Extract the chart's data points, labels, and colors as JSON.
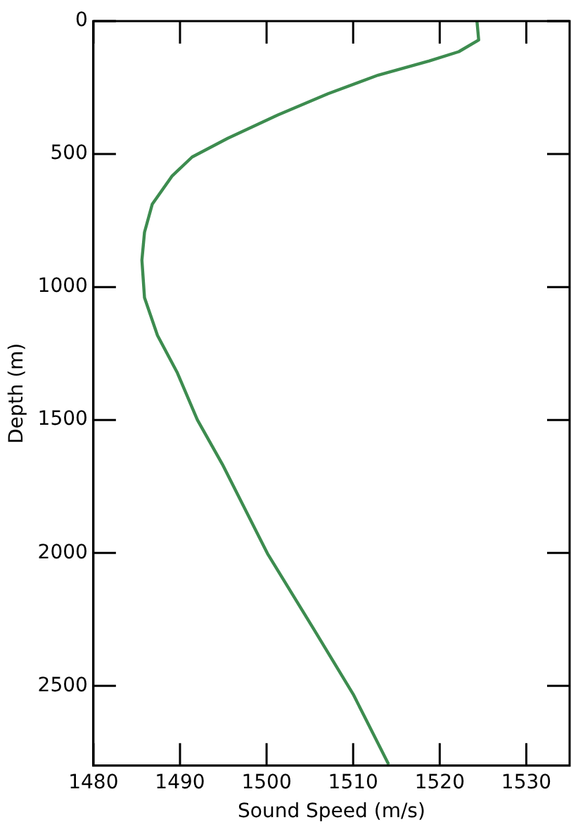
{
  "chart_data": {
    "type": "line",
    "xlabel": "Sound Speed (m/s)",
    "ylabel": "Depth (m)",
    "series": [
      {
        "color": "#3d8c4f",
        "x": [
          1524.3,
          1524.5,
          1522.2,
          1518.8,
          1512.9,
          1507.1,
          1501.3,
          1495.5,
          1491.4,
          1489.1,
          1486.8,
          1485.9,
          1485.6,
          1485.9,
          1487.4,
          1489.7,
          1492.0,
          1494.9,
          1500.1,
          1505.4,
          1510.0,
          1514.1
        ],
        "values": [
          0,
          71,
          115,
          150,
          203,
          273,
          353,
          441,
          511,
          582,
          688,
          794,
          899,
          1040,
          1182,
          1323,
          1499,
          1667,
          2002,
          2284,
          2531,
          2795
        ]
      }
    ],
    "xlim": [
      1480,
      1535
    ],
    "xticks": [
      1480,
      1490,
      1500,
      1510,
      1520,
      1530
    ],
    "ylim": [
      2800,
      0
    ],
    "yticks": [
      0,
      500,
      1000,
      1500,
      2000,
      2500
    ],
    "grid": false,
    "legend": false,
    "marker": "none",
    "line_style": "solid"
  }
}
